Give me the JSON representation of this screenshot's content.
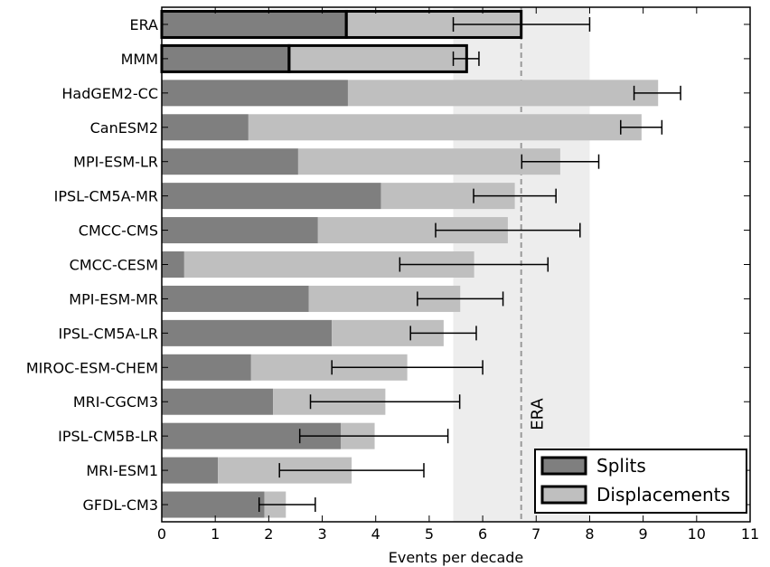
{
  "chart_data": {
    "type": "bar",
    "orientation": "horizontal",
    "stacked": true,
    "categories": [
      "ERA",
      "MMM",
      "HadGEM2-CC",
      "CanESM2",
      "MPI-ESM-LR",
      "IPSL-CM5A-MR",
      "CMCC-CMS",
      "CMCC-CESM",
      "MPI-ESM-MR",
      "IPSL-CM5A-LR",
      "MIROC-ESM-CHEM",
      "MRI-CGCM3",
      "IPSL-CM5B-LR",
      "MRI-ESM1",
      "GFDL-CM3"
    ],
    "series": [
      {
        "name": "Splits",
        "values": [
          3.45,
          2.38,
          3.48,
          1.62,
          2.55,
          4.1,
          2.92,
          0.42,
          2.75,
          3.18,
          1.67,
          2.08,
          3.35,
          1.05,
          1.92
        ],
        "color": "#7f7f7f"
      },
      {
        "name": "Displacements",
        "values": [
          3.27,
          3.32,
          5.8,
          7.35,
          4.9,
          2.5,
          3.55,
          5.42,
          2.83,
          2.09,
          2.92,
          2.1,
          0.63,
          2.5,
          0.4
        ],
        "color": "#bfbfbf"
      }
    ],
    "totals": [
      6.72,
      5.7,
      9.28,
      8.97,
      7.45,
      6.6,
      6.47,
      5.84,
      5.58,
      5.27,
      4.59,
      4.18,
      3.98,
      3.55,
      2.32
    ],
    "error_bars": [
      {
        "center": 6.72,
        "low": 5.45,
        "high": 8.0
      },
      {
        "center": 5.7,
        "low": 5.45,
        "high": 5.93
      },
      {
        "center": 9.28,
        "low": 8.83,
        "high": 9.7
      },
      {
        "center": 8.97,
        "low": 8.58,
        "high": 9.35
      },
      {
        "center": 7.45,
        "low": 6.73,
        "high": 8.17
      },
      {
        "center": 6.6,
        "low": 5.83,
        "high": 7.37
      },
      {
        "center": 6.47,
        "low": 5.12,
        "high": 7.82
      },
      {
        "center": 5.84,
        "low": 4.45,
        "high": 7.22
      },
      {
        "center": 5.58,
        "low": 4.78,
        "high": 6.38
      },
      {
        "center": 5.27,
        "low": 4.65,
        "high": 5.88
      },
      {
        "center": 4.59,
        "low": 3.18,
        "high": 6.0
      },
      {
        "center": 4.18,
        "low": 2.78,
        "high": 5.57
      },
      {
        "center": 3.98,
        "low": 2.58,
        "high": 5.35
      },
      {
        "center": 3.55,
        "low": 2.2,
        "high": 4.9
      },
      {
        "center": 2.32,
        "low": 1.82,
        "high": 2.87
      }
    ],
    "outlined_categories": [
      "ERA",
      "MMM"
    ],
    "reference_line": {
      "label": "ERA",
      "value": 6.72
    },
    "reference_band": [
      5.45,
      8.0
    ],
    "xlabel": "Events per decade",
    "xlim": [
      0,
      11
    ],
    "xticks": [
      0,
      1,
      2,
      3,
      4,
      5,
      6,
      7,
      8,
      9,
      10,
      11
    ],
    "legend": {
      "placement": "lower-right",
      "entries": [
        "Splits",
        "Displacements"
      ]
    },
    "grid": false
  }
}
